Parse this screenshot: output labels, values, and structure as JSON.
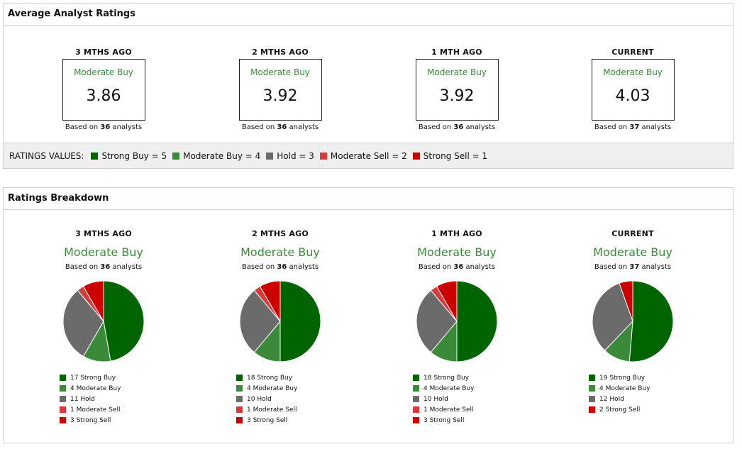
{
  "avg_panel": {
    "title": "Average Analyst Ratings",
    "legend_title": "RATINGS VALUES:",
    "legend": [
      {
        "label": "Strong Buy = 5",
        "color": "#006400"
      },
      {
        "label": "Moderate Buy = 4",
        "color": "#3a8a3a"
      },
      {
        "label": "Hold = 3",
        "color": "#6b6b6b"
      },
      {
        "label": "Moderate Sell = 2",
        "color": "#d9393b"
      },
      {
        "label": "Strong Sell = 1",
        "color": "#cc0000"
      }
    ],
    "periods": [
      {
        "name": "3 MTHS AGO",
        "rating": "Moderate Buy",
        "score": "3.86",
        "prefix": "Based on ",
        "count": "36",
        "suffix": " analysts"
      },
      {
        "name": "2 MTHS AGO",
        "rating": "Moderate Buy",
        "score": "3.92",
        "prefix": "Based on ",
        "count": "36",
        "suffix": " analysts"
      },
      {
        "name": "1 MTH AGO",
        "rating": "Moderate Buy",
        "score": "3.92",
        "prefix": "Based on ",
        "count": "36",
        "suffix": " analysts"
      },
      {
        "name": "CURRENT",
        "rating": "Moderate Buy",
        "score": "4.03",
        "prefix": "Based on ",
        "count": "37",
        "suffix": " analysts"
      }
    ]
  },
  "breakdown_panel": {
    "title": "Ratings Breakdown",
    "periods": [
      {
        "name": "3 MTHS AGO",
        "rating": "Moderate Buy",
        "prefix": "Based on ",
        "count": "36",
        "suffix": " analysts",
        "legend": [
          "17 Strong Buy",
          "4 Moderate Buy",
          "11 Hold",
          "1 Moderate Sell",
          "3 Strong Sell"
        ]
      },
      {
        "name": "2 MTHS AGO",
        "rating": "Moderate Buy",
        "prefix": "Based on ",
        "count": "36",
        "suffix": " analysts",
        "legend": [
          "18 Strong Buy",
          "4 Moderate Buy",
          "10 Hold",
          "1 Moderate Sell",
          "3 Strong Sell"
        ]
      },
      {
        "name": "1 MTH AGO",
        "rating": "Moderate Buy",
        "prefix": "Based on ",
        "count": "36",
        "suffix": " analysts",
        "legend": [
          "18 Strong Buy",
          "4 Moderate Buy",
          "10 Hold",
          "1 Moderate Sell",
          "3 Strong Sell"
        ]
      },
      {
        "name": "CURRENT",
        "rating": "Moderate Buy",
        "prefix": "Based on ",
        "count": "37",
        "suffix": " analysts",
        "legend": [
          "19 Strong Buy",
          "4 Moderate Buy",
          "12 Hold",
          "2 Strong Sell"
        ]
      }
    ]
  },
  "chart_data": [
    {
      "type": "pie",
      "title": "3 MTHS AGO",
      "categories": [
        "Strong Buy",
        "Moderate Buy",
        "Hold",
        "Moderate Sell",
        "Strong Sell"
      ],
      "values": [
        17,
        4,
        11,
        1,
        3
      ],
      "colors": [
        "#006400",
        "#3a8a3a",
        "#6b6b6b",
        "#d9393b",
        "#cc0000"
      ]
    },
    {
      "type": "pie",
      "title": "2 MTHS AGO",
      "categories": [
        "Strong Buy",
        "Moderate Buy",
        "Hold",
        "Moderate Sell",
        "Strong Sell"
      ],
      "values": [
        18,
        4,
        10,
        1,
        3
      ],
      "colors": [
        "#006400",
        "#3a8a3a",
        "#6b6b6b",
        "#d9393b",
        "#cc0000"
      ]
    },
    {
      "type": "pie",
      "title": "1 MTH AGO",
      "categories": [
        "Strong Buy",
        "Moderate Buy",
        "Hold",
        "Moderate Sell",
        "Strong Sell"
      ],
      "values": [
        18,
        4,
        10,
        1,
        3
      ],
      "colors": [
        "#006400",
        "#3a8a3a",
        "#6b6b6b",
        "#d9393b",
        "#cc0000"
      ]
    },
    {
      "type": "pie",
      "title": "CURRENT",
      "categories": [
        "Strong Buy",
        "Moderate Buy",
        "Hold",
        "Strong Sell"
      ],
      "values": [
        19,
        4,
        12,
        2
      ],
      "colors": [
        "#006400",
        "#3a8a3a",
        "#6b6b6b",
        "#cc0000"
      ]
    }
  ]
}
